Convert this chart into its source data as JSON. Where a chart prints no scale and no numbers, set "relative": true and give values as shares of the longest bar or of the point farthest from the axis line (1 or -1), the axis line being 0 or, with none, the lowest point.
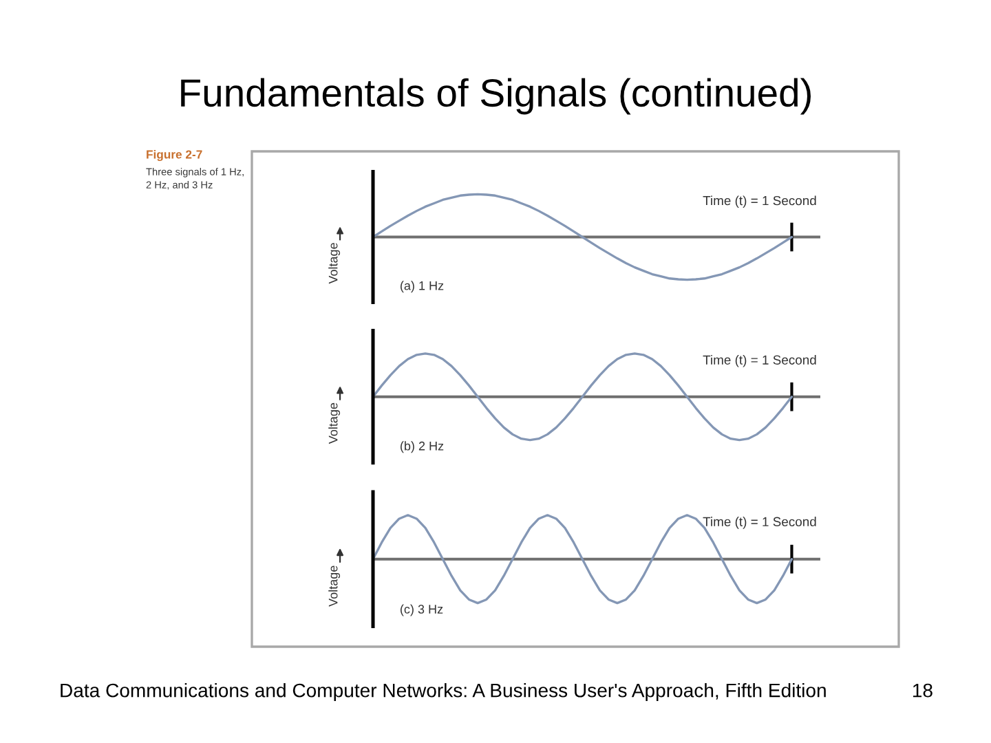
{
  "chart_data": [
    {
      "type": "other",
      "title": "Fundamentals of Signals (continued)",
      "annotations": [
        "Figure 2-7",
        "Three signals of 1 Hz,\n2 Hz, and 3 Hz",
        "Data Communications and Computer Networks: A Business User's Approach, Fifth Edition",
        "18"
      ]
    },
    {
      "type": "line",
      "relative": true,
      "line_style": "solid",
      "ylabel": "Voltage",
      "annotations": [
        "Time (t) = 1 Second",
        "(a) 1 Hz"
      ],
      "categories": [
        null,
        null,
        null,
        null,
        null,
        null,
        null,
        null,
        null,
        null,
        null,
        null,
        null,
        null,
        null,
        null,
        null,
        null,
        null,
        null,
        null,
        null,
        null,
        null,
        null,
        null,
        null,
        null,
        null,
        null,
        null,
        null,
        null,
        null,
        null,
        null,
        null,
        null,
        null,
        null,
        null,
        null,
        null,
        null,
        null,
        null,
        null,
        null,
        null
      ],
      "series": [
        {
          "color": "#8497b5",
          "values": [
            0,
            0.13,
            0.26,
            0.38,
            0.5,
            0.61,
            0.71,
            0.79,
            0.87,
            0.92,
            0.97,
            0.99,
            1,
            0.99,
            0.97,
            0.92,
            0.87,
            0.79,
            0.71,
            0.61,
            0.5,
            0.38,
            0.26,
            0.13,
            0,
            -0.13,
            -0.26,
            -0.38,
            -0.5,
            -0.61,
            -0.71,
            -0.79,
            -0.87,
            -0.92,
            -0.97,
            -0.99,
            -1,
            -0.99,
            -0.97,
            -0.92,
            -0.87,
            -0.79,
            -0.71,
            -0.61,
            -0.5,
            -0.38,
            -0.26,
            -0.13,
            0
          ]
        }
      ]
    },
    {
      "type": "line",
      "relative": true,
      "line_style": "solid",
      "ylabel": "Voltage",
      "annotations": [
        "Time (t) = 1 Second",
        "(b) 2 Hz"
      ],
      "categories": [
        null,
        null,
        null,
        null,
        null,
        null,
        null,
        null,
        null,
        null,
        null,
        null,
        null,
        null,
        null,
        null,
        null,
        null,
        null,
        null,
        null,
        null,
        null,
        null,
        null,
        null,
        null,
        null,
        null,
        null,
        null,
        null,
        null,
        null,
        null,
        null,
        null,
        null,
        null,
        null,
        null,
        null,
        null,
        null,
        null,
        null,
        null,
        null,
        null
      ],
      "series": [
        {
          "color": "#8497b5",
          "values": [
            0,
            0.26,
            0.5,
            0.71,
            0.87,
            0.97,
            1,
            0.97,
            0.87,
            0.71,
            0.5,
            0.26,
            0,
            -0.26,
            -0.5,
            -0.71,
            -0.87,
            -0.97,
            -1,
            -0.97,
            -0.87,
            -0.71,
            -0.5,
            -0.26,
            0,
            0.26,
            0.5,
            0.71,
            0.87,
            0.97,
            1,
            0.97,
            0.87,
            0.71,
            0.5,
            0.26,
            0,
            -0.26,
            -0.5,
            -0.71,
            -0.87,
            -0.97,
            -1,
            -0.97,
            -0.87,
            -0.71,
            -0.5,
            -0.26,
            0
          ]
        }
      ]
    },
    {
      "type": "line",
      "relative": true,
      "line_style": "solid",
      "ylabel": "Voltage",
      "annotations": [
        "Time (t) = 1 Second",
        "(c) 3 Hz"
      ],
      "categories": [
        null,
        null,
        null,
        null,
        null,
        null,
        null,
        null,
        null,
        null,
        null,
        null,
        null,
        null,
        null,
        null,
        null,
        null,
        null,
        null,
        null,
        null,
        null,
        null,
        null,
        null,
        null,
        null,
        null,
        null,
        null,
        null,
        null,
        null,
        null,
        null,
        null,
        null,
        null,
        null,
        null,
        null,
        null,
        null,
        null,
        null,
        null,
        null,
        null
      ],
      "series": [
        {
          "color": "#8497b5",
          "values": [
            0,
            0.38,
            0.71,
            0.92,
            1,
            0.92,
            0.71,
            0.38,
            0,
            -0.38,
            -0.71,
            -0.92,
            -1,
            -0.92,
            -0.71,
            -0.38,
            0,
            0.38,
            0.71,
            0.92,
            1,
            0.92,
            0.71,
            0.38,
            0,
            -0.38,
            -0.71,
            -0.92,
            -1,
            -0.92,
            -0.71,
            -0.38,
            0,
            0.38,
            0.71,
            0.92,
            1,
            0.92,
            0.71,
            0.38,
            0,
            -0.38,
            -0.71,
            -0.92,
            -1,
            -0.92,
            -0.71,
            -0.38,
            0
          ]
        }
      ]
    }
  ]
}
